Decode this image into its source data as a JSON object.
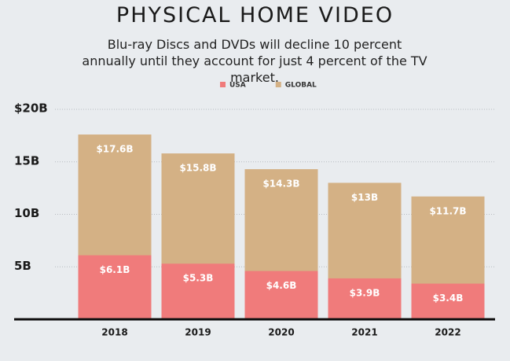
{
  "chart_data": {
    "type": "bar",
    "overlap": true,
    "title": "PHYSICAL HOME VIDEO",
    "subtitle": "Blu-ray Discs and DVDs will decline 10 percent annually until they account for just 4 percent of the TV market.",
    "categories": [
      "2018",
      "2019",
      "2020",
      "2021",
      "2022"
    ],
    "series": [
      {
        "name": "USA",
        "color": "#f07b7b",
        "values": [
          6.1,
          5.3,
          4.6,
          3.9,
          3.4
        ],
        "value_labels": [
          "$6.1B",
          "$5.3B",
          "$4.6B",
          "$3.9B",
          "$3.4B"
        ]
      },
      {
        "name": "GLOBAL",
        "color": "#d4b185",
        "values": [
          17.6,
          15.8,
          14.3,
          13,
          11.7
        ],
        "value_labels": [
          "$17.6B",
          "$15.8B",
          "$14.3B",
          "$13B",
          "$11.7B"
        ]
      }
    ],
    "ylim": [
      0,
      20
    ],
    "yticks": [
      {
        "value": 5,
        "label": "5B"
      },
      {
        "value": 10,
        "label": "10B"
      },
      {
        "value": 15,
        "label": "15B"
      },
      {
        "value": 20,
        "label": "$20B"
      }
    ],
    "grid": true,
    "legend": "top"
  }
}
